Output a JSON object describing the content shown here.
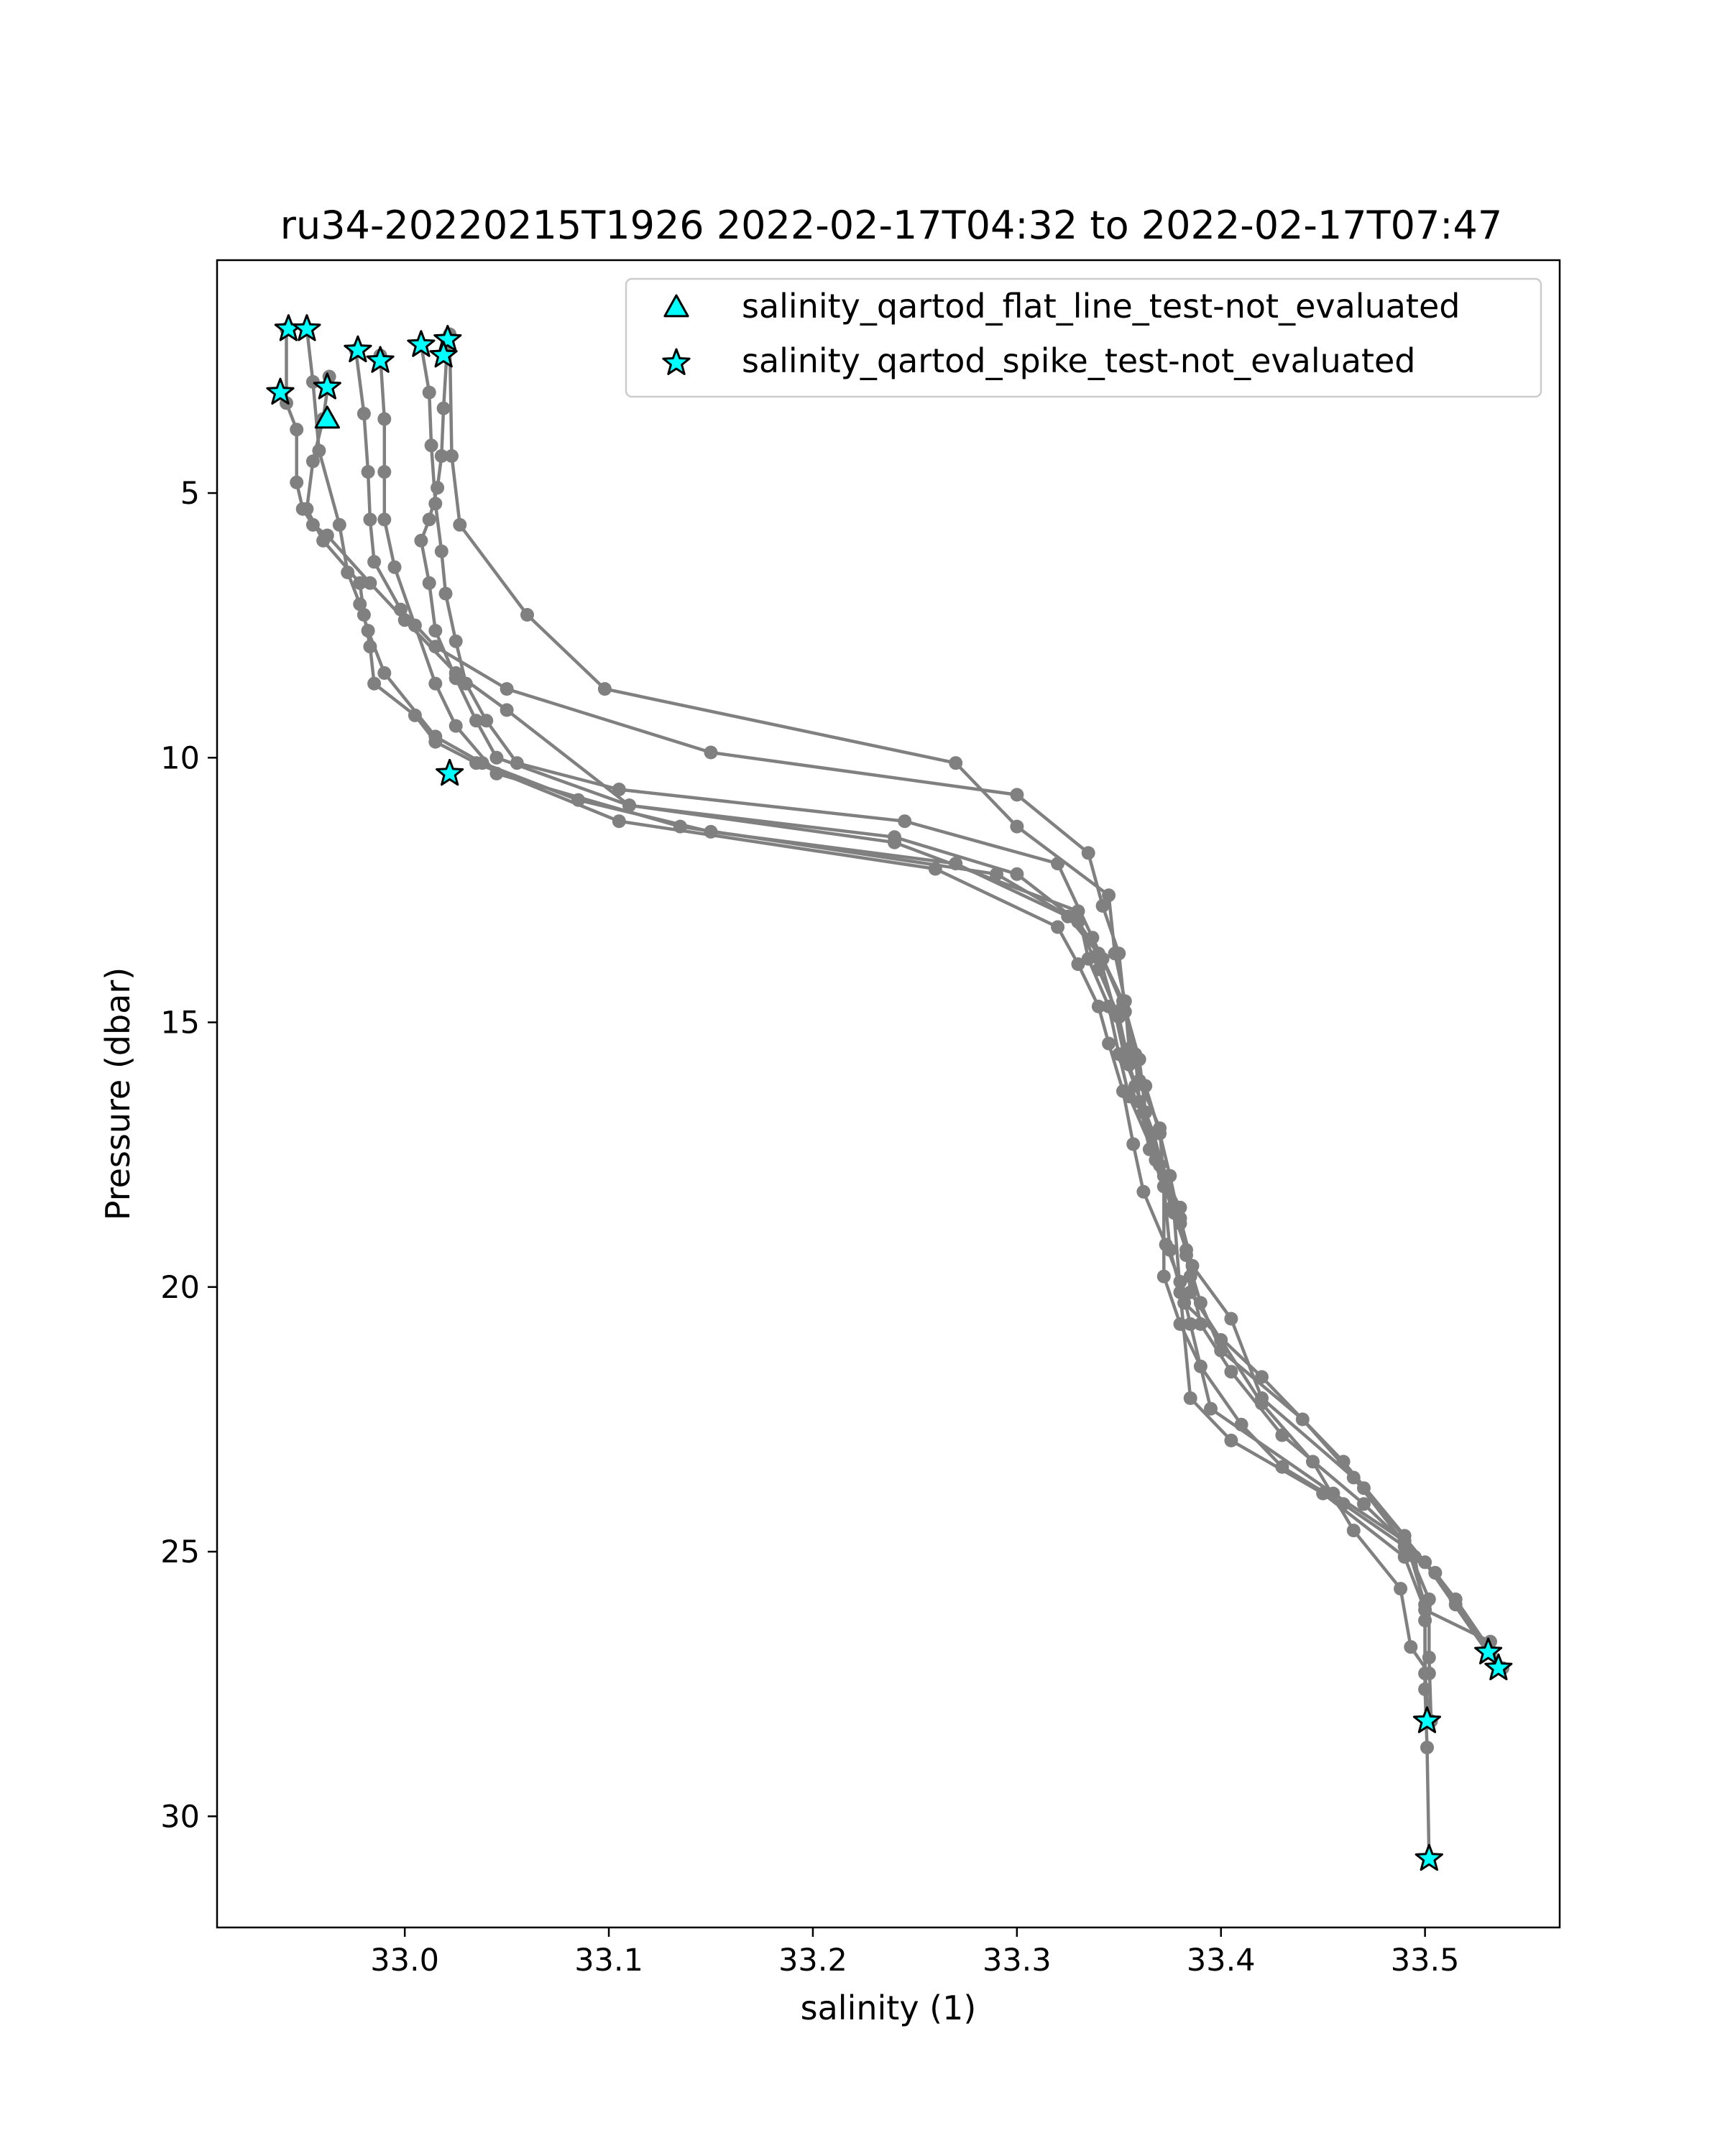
{
  "chart_data": {
    "type": "line",
    "title": "ru34-20220215T1926 2022-02-17T04:32 to 2022-02-17T07:47",
    "xlabel": "salinity (1)",
    "ylabel": "Pressure (dbar)",
    "xlim": [
      32.908,
      33.566
    ],
    "ylim": [
      32.1,
      0.6
    ],
    "y_inverted": true,
    "grid": false,
    "legend_position": "top-right",
    "xticks": [
      {
        "value": 33.0,
        "label": "33.0"
      },
      {
        "value": 33.1,
        "label": "33.1"
      },
      {
        "value": 33.2,
        "label": "33.2"
      },
      {
        "value": 33.3,
        "label": "33.3"
      },
      {
        "value": 33.4,
        "label": "33.4"
      },
      {
        "value": 33.5,
        "label": "33.5"
      }
    ],
    "yticks": [
      {
        "value": 5,
        "label": "5"
      },
      {
        "value": 10,
        "label": "10"
      },
      {
        "value": 15,
        "label": "15"
      },
      {
        "value": 20,
        "label": "20"
      },
      {
        "value": 25,
        "label": "25"
      },
      {
        "value": 30,
        "label": "30"
      }
    ],
    "profile_color": "#808080",
    "marker_fill": "#00ffff",
    "marker_edge": "#000000",
    "profiles": [
      {
        "x": [
          32.942,
          32.942,
          32.947,
          32.947,
          32.95,
          32.955,
          32.962,
          32.983,
          33.0,
          33.025,
          33.05,
          33.11,
          33.24,
          33.33,
          33.335,
          33.345,
          33.35,
          33.355,
          33.372,
          33.372,
          33.38,
          33.39,
          33.41,
          33.43,
          33.46,
          33.49,
          33.505,
          33.515,
          33.538
        ],
        "y": [
          1.9,
          3.3,
          3.8,
          4.8,
          5.3,
          5.6,
          5.8,
          6.7,
          7.4,
          8.4,
          9.1,
          10.9,
          11.6,
          12.9,
          13.8,
          14.7,
          15.6,
          16.4,
          17.9,
          19.8,
          20.7,
          21.5,
          22.6,
          23.4,
          24.1,
          24.9,
          25.4,
          25.9,
          27.2
        ]
      },
      {
        "x": [
          32.952,
          32.955,
          32.958,
          32.968,
          32.972,
          32.978,
          32.982,
          32.99,
          33.015,
          33.038,
          33.085,
          33.15,
          33.27,
          33.325,
          33.34,
          33.348,
          33.353,
          33.358,
          33.367,
          33.377,
          33.38,
          33.385,
          33.405,
          33.45,
          33.49,
          33.5,
          33.532
        ],
        "y": [
          1.9,
          2.9,
          4.2,
          5.6,
          6.5,
          7.1,
          7.6,
          8.4,
          9.6,
          10.1,
          10.8,
          11.4,
          12.0,
          13.0,
          13.7,
          14.8,
          15.7,
          16.2,
          17.1,
          18.6,
          20.1,
          22.1,
          22.9,
          23.9,
          25.1,
          26.1,
          26.7
        ]
      },
      {
        "x": [
          32.963,
          32.96,
          32.955,
          32.952,
          32.96,
          32.978,
          32.98,
          32.983,
          32.985,
          33.005,
          33.015,
          33.035,
          33.105,
          33.26,
          33.32,
          33.33,
          33.34,
          33.345,
          33.352,
          33.357,
          33.362,
          33.373,
          33.38,
          33.385,
          33.395,
          33.455,
          33.49,
          33.502,
          33.502,
          33.503
        ],
        "y": [
          2.8,
          3.6,
          4.4,
          5.3,
          5.9,
          6.7,
          7.3,
          7.9,
          8.6,
          9.2,
          9.7,
          10.1,
          11.2,
          12.1,
          13.2,
          13.9,
          14.7,
          15.4,
          16.3,
          17.3,
          18.2,
          19.2,
          19.9,
          20.7,
          22.3,
          23.9,
          24.8,
          25.9,
          27.0,
          28.2
        ]
      },
      {
        "x": [
          32.976,
          32.98,
          32.982,
          32.983,
          32.985,
          32.998,
          33.015,
          33.05,
          33.15,
          33.3,
          33.335,
          33.342,
          33.35,
          33.353,
          33.36,
          33.37,
          33.372,
          33.375,
          33.382,
          33.42,
          33.46,
          33.49,
          33.5,
          33.5,
          33.502
        ],
        "y": [
          2.3,
          3.5,
          4.6,
          5.5,
          6.3,
          7.2,
          7.9,
          8.7,
          9.9,
          10.7,
          11.8,
          12.8,
          13.7,
          14.8,
          16.1,
          17.0,
          18.1,
          19.3,
          20.3,
          21.7,
          23.3,
          24.7,
          26.0,
          27.3,
          28.2
        ]
      },
      {
        "x": [
          32.988,
          32.99,
          32.99,
          32.99,
          32.995,
          33.005,
          33.015,
          33.025,
          33.045,
          33.135,
          33.29,
          33.33,
          33.342,
          33.352,
          33.358,
          33.36,
          33.365,
          33.376,
          33.383,
          33.385,
          33.4,
          33.42,
          33.445,
          33.465,
          33.488,
          33.493,
          33.502
        ],
        "y": [
          2.4,
          3.6,
          4.6,
          5.5,
          6.4,
          7.5,
          8.6,
          9.4,
          10.3,
          11.3,
          12.2,
          13.1,
          13.8,
          14.7,
          15.6,
          16.5,
          17.4,
          18.5,
          19.3,
          20.1,
          21.0,
          22.2,
          23.3,
          24.6,
          25.7,
          26.8,
          27.3
        ]
      },
      {
        "x": [
          33.008,
          33.012,
          33.013,
          33.015,
          33.018,
          33.02,
          33.025,
          33.03,
          33.04,
          33.055,
          33.105,
          33.245,
          33.32,
          33.337,
          33.352,
          33.36,
          33.363,
          33.37,
          33.38,
          33.386,
          33.405,
          33.42,
          33.465,
          33.495,
          33.5,
          33.5,
          33.501,
          33.502
        ],
        "y": [
          2.2,
          3.1,
          4.1,
          5.2,
          6.1,
          6.9,
          7.8,
          8.6,
          9.3,
          10.1,
          10.6,
          11.2,
          12.0,
          13.4,
          14.6,
          15.7,
          16.7,
          17.7,
          18.7,
          19.6,
          20.6,
          22.1,
          23.6,
          25.1,
          26.3,
          27.6,
          28.7,
          30.8
        ]
      },
      {
        "x": [
          33.021,
          33.019,
          33.018,
          33.016,
          33.012,
          33.008,
          33.012,
          33.015,
          33.025,
          33.035,
          33.045,
          33.11,
          33.24,
          33.3,
          33.33,
          33.34,
          33.35,
          33.355,
          33.362,
          33.368,
          33.38,
          33.383,
          33.39,
          33.4,
          33.44,
          33.47,
          33.5,
          33.536
        ],
        "y": [
          2.1,
          3.4,
          4.3,
          4.9,
          5.5,
          5.9,
          6.7,
          7.6,
          8.5,
          9.3,
          10.0,
          10.9,
          11.5,
          12.2,
          13.1,
          14.0,
          14.9,
          15.8,
          16.7,
          17.6,
          18.5,
          19.4,
          20.3,
          21.2,
          22.5,
          23.8,
          25.2,
          27.2
        ]
      },
      {
        "x": [
          33.022,
          33.023,
          33.027,
          33.06,
          33.098,
          33.27,
          33.3,
          33.345,
          33.348,
          33.353,
          33.355,
          33.363,
          33.37,
          33.375,
          33.38,
          33.385,
          33.39,
          33.405,
          33.43,
          33.47,
          33.505,
          33.515,
          33.532
        ],
        "y": [
          2.0,
          4.3,
          5.6,
          7.3,
          8.7,
          10.1,
          11.3,
          12.6,
          13.7,
          14.6,
          15.5,
          16.2,
          17.1,
          17.9,
          18.8,
          19.8,
          20.7,
          21.6,
          22.8,
          24.1,
          25.4,
          26.0,
          26.9
        ]
      }
    ],
    "series": [
      {
        "name": "salinity_qartod_flat_line_test-not_evaluated",
        "marker": "triangle",
        "x": [
          32.962
        ],
        "y": [
          3.6
        ]
      },
      {
        "name": "salinity_qartod_spike_test-not_evaluated",
        "marker": "star",
        "x": [
          32.943,
          32.952,
          32.939,
          32.962,
          32.977,
          32.988,
          33.008,
          33.021,
          33.019,
          33.022,
          33.531,
          33.536,
          33.501,
          33.502
        ],
        "y": [
          1.9,
          1.9,
          3.1,
          3.0,
          2.3,
          2.5,
          2.2,
          2.1,
          2.4,
          10.3,
          26.9,
          27.2,
          28.2,
          30.8
        ]
      }
    ]
  }
}
